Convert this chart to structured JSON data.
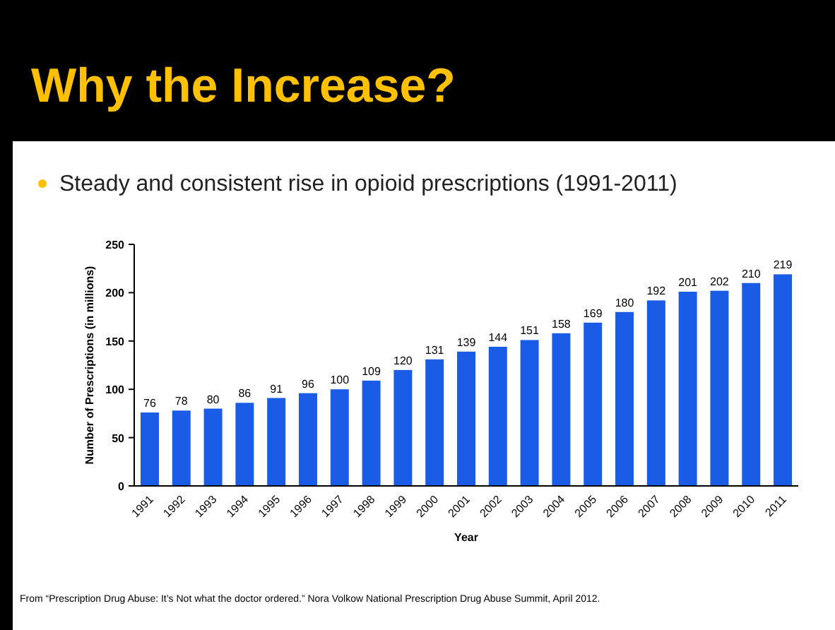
{
  "chart_data": {
    "type": "bar",
    "title": "Why the Increase?",
    "subtitle": "Steady and consistent rise in opioid prescriptions (1991-2011)",
    "xlabel": "Year",
    "ylabel": "Number of Prescriptions (in millions)",
    "categories": [
      "1991",
      "1992",
      "1993",
      "1994",
      "1995",
      "1996",
      "1997",
      "1998",
      "1999",
      "2000",
      "2001",
      "2002",
      "2003",
      "2004",
      "2005",
      "2006",
      "2007",
      "2008",
      "2009",
      "2010",
      "2011"
    ],
    "values": [
      76,
      78,
      80,
      86,
      91,
      96,
      100,
      109,
      120,
      131,
      139,
      144,
      151,
      158,
      169,
      180,
      192,
      201,
      202,
      210,
      219
    ],
    "color": "#1a5ce6",
    "data_labels": true,
    "ylim": [
      0,
      250
    ],
    "yticks": [
      0,
      50,
      100,
      150,
      200,
      250
    ],
    "grid": false,
    "annotations": [
      "From “Prescription Drug Abuse: It’s Not what the doctor ordered.” Nora Volkow National Prescription Drug Abuse Summit, April 2012."
    ]
  }
}
